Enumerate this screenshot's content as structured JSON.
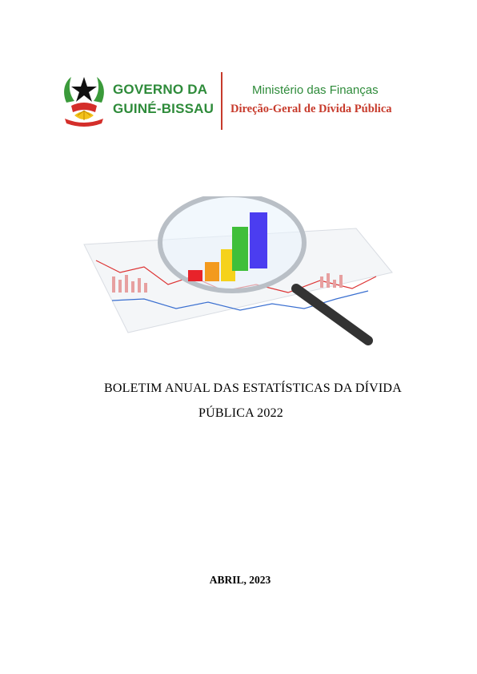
{
  "header": {
    "gov_line1": "GOVERNO DA",
    "gov_line2": "GUINÉ-BISSAU",
    "ministry": "Ministério das Finanças",
    "directorate": "Direção-Geral de Dívida Pública",
    "accent_green": "#2e8b3a",
    "accent_red": "#c73a2b"
  },
  "illustration": {
    "icon": "magnifier-chart-icon",
    "bar_colors": [
      "#e8232a",
      "#f39a1e",
      "#f5d21b",
      "#3fbf3a",
      "#4b3df0"
    ]
  },
  "document": {
    "title_line1": "BOLETIM ANUAL DAS ESTATÍSTICAS DA DÍVIDA",
    "title_line2": "PÚBLICA 2022",
    "date": "ABRIL, 2023"
  }
}
